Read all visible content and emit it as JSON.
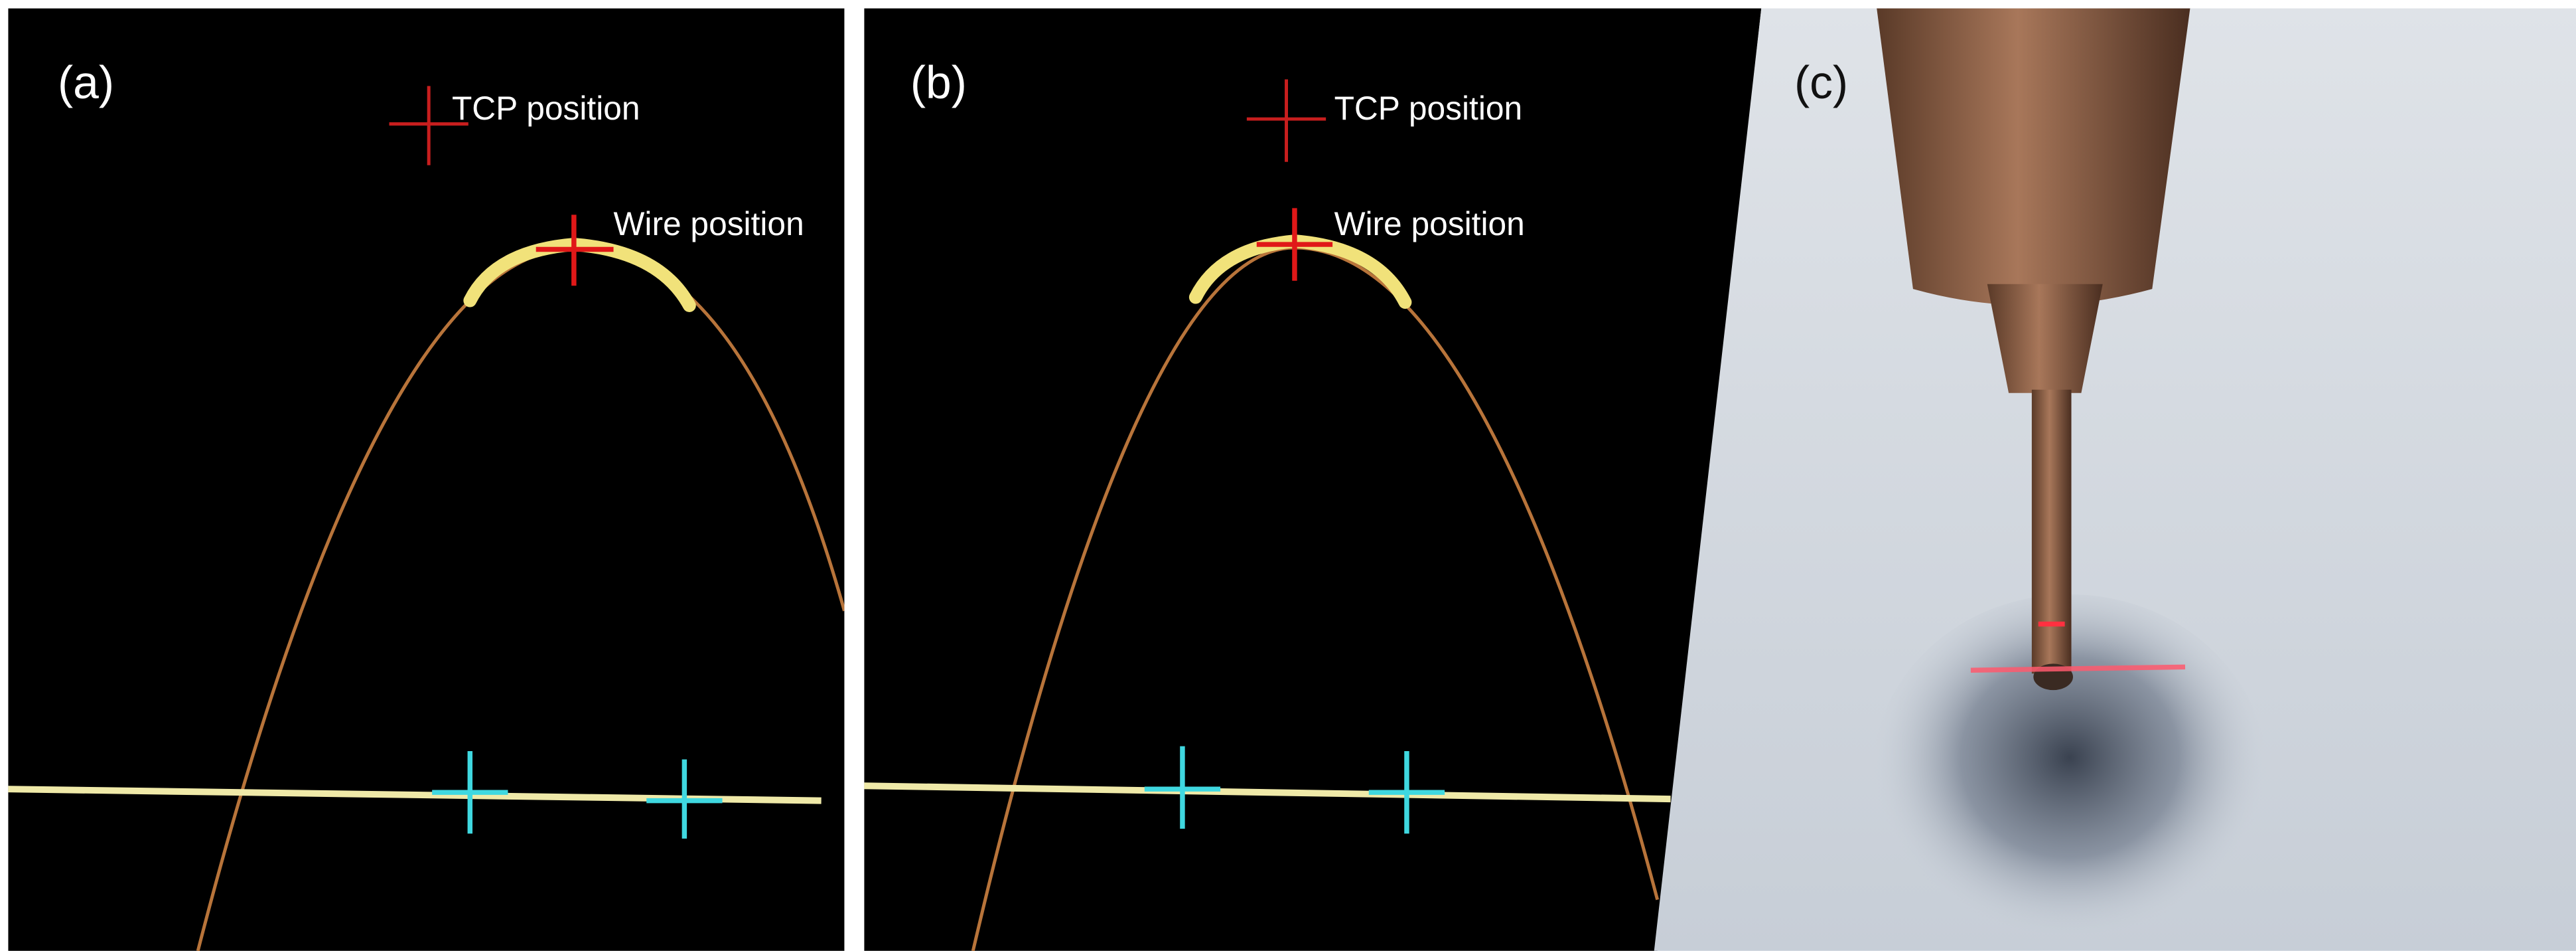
{
  "panels": [
    {
      "label": "(a)",
      "annotations": [
        "TCP position",
        "Wire position"
      ]
    },
    {
      "label": "(b)",
      "annotations": [
        "TCP position",
        "Wire position"
      ]
    },
    {
      "label": "(c)"
    }
  ]
}
